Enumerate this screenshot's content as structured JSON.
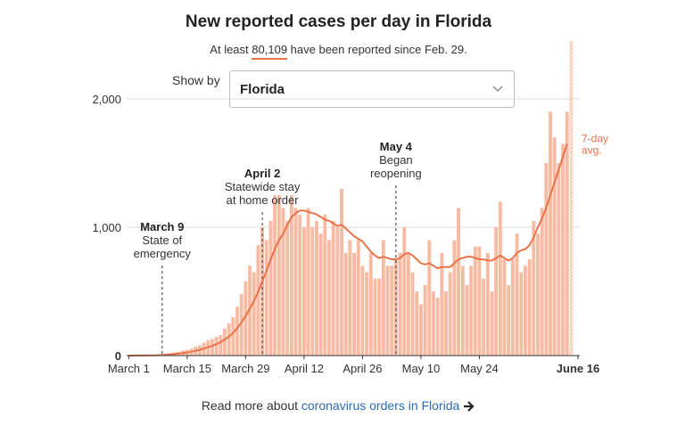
{
  "header": {
    "title": "New reported cases per day in Florida",
    "subtitle_prefix": "At least",
    "subtitle_number": "80,109",
    "subtitle_suffix": "have been reported since Feb. 29."
  },
  "selector": {
    "label": "Show by",
    "value": "Florida"
  },
  "footer": {
    "prefix": "Read more about",
    "link_text": "coronavirus orders in Florida"
  },
  "colors": {
    "bar": "#f7bba3",
    "line": "#e8734a",
    "grid": "#dddddd",
    "annotation": "#555555"
  },
  "chart_data": {
    "type": "bar",
    "title": "New reported cases per day in Florida",
    "xlabel": "",
    "ylabel": "",
    "ylim": [
      0,
      2000
    ],
    "yticks": [
      0,
      1000,
      2000
    ],
    "ytick_labels": [
      "0",
      "1,000",
      "2,000"
    ],
    "xticks": [
      {
        "day": 0,
        "label": "March 1"
      },
      {
        "day": 14,
        "label": "March 15"
      },
      {
        "day": 28,
        "label": "March 29"
      },
      {
        "day": 42,
        "label": "April 12"
      },
      {
        "day": 56,
        "label": "April 26"
      },
      {
        "day": 70,
        "label": "May 10"
      },
      {
        "day": 84,
        "label": "May 24"
      },
      {
        "day": 107,
        "label": "June 16"
      }
    ],
    "values": [
      0,
      0,
      2,
      1,
      2,
      3,
      3,
      8,
      12,
      15,
      20,
      25,
      30,
      40,
      45,
      55,
      70,
      80,
      100,
      120,
      130,
      145,
      160,
      210,
      250,
      300,
      380,
      480,
      580,
      700,
      650,
      860,
      1000,
      900,
      1050,
      1250,
      1250,
      1150,
      1050,
      1250,
      1150,
      1100,
      1000,
      1150,
      1000,
      1050,
      950,
      1100,
      900,
      1050,
      1000,
      1300,
      800,
      900,
      800,
      900,
      700,
      650,
      800,
      600,
      600,
      900,
      700,
      700,
      750,
      800,
      1000,
      800,
      650,
      500,
      400,
      550,
      900,
      500,
      450,
      800,
      500,
      650,
      900,
      1150,
      700,
      550,
      700,
      850,
      850,
      600,
      800,
      500,
      1000,
      1200,
      750,
      550,
      750,
      950,
      650,
      700,
      750,
      1050,
      950,
      1150,
      1500,
      1900,
      1700,
      1500,
      1650,
      1900
    ],
    "partial_day_value": 2450,
    "avg7": [
      0,
      0,
      1,
      1,
      1,
      2,
      2,
      3,
      5,
      7,
      9,
      12,
      16,
      20,
      24,
      30,
      37,
      45,
      54,
      65,
      76,
      89,
      104,
      124,
      148,
      177,
      214,
      258,
      308,
      367,
      425,
      497,
      580,
      660,
      750,
      830,
      900,
      950,
      1020,
      1080,
      1110,
      1130,
      1130,
      1120,
      1110,
      1100,
      1080,
      1060,
      1050,
      1030,
      1010,
      1020,
      990,
      960,
      930,
      910,
      890,
      850,
      810,
      780,
      760,
      770,
      760,
      750,
      750,
      760,
      790,
      800,
      780,
      750,
      720,
      710,
      720,
      700,
      680,
      690,
      690,
      690,
      720,
      750,
      760,
      770,
      770,
      760,
      750,
      750,
      740,
      740,
      760,
      780,
      760,
      740,
      760,
      800,
      820,
      830,
      860,
      920,
      1000,
      1070,
      1150,
      1250,
      1350,
      1450,
      1550,
      1650
    ],
    "avg_label": [
      "7-day",
      "avg."
    ],
    "annotations": [
      {
        "day": 8,
        "title": "March 9",
        "lines": [
          "State of",
          "emergency"
        ]
      },
      {
        "day": 32,
        "title": "April 2",
        "lines": [
          "Statewide stay",
          "at home order"
        ]
      },
      {
        "day": 64,
        "title": "May 4",
        "lines": [
          "Began",
          "reopening"
        ]
      }
    ]
  }
}
